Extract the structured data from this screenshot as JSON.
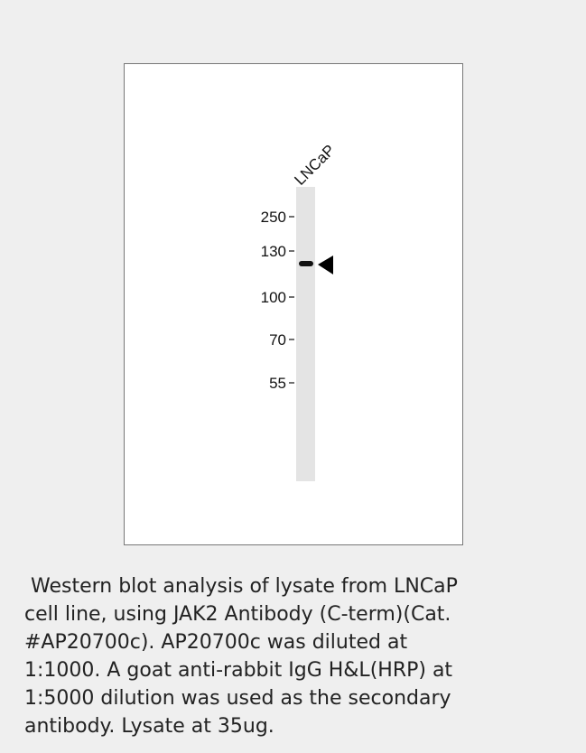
{
  "blot": {
    "lane_label": "LNCaP",
    "markers": [
      "250",
      "130",
      "100",
      "70",
      "55"
    ]
  },
  "caption": {
    "lines": [
      "Western blot analysis of lysate from LNCaP",
      "cell line, using JAK2 Antibody (C-term)(Cat.",
      "#AP20700c). AP20700c was diluted at",
      "1:1000. A goat anti-rabbit IgG H&L(HRP) at",
      "1:5000 dilution was used as the secondary",
      "antibody. Lysate at 35ug."
    ]
  }
}
